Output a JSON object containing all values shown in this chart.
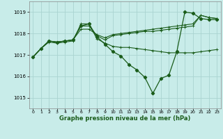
{
  "xlabel": "Graphe pression niveau de la mer (hPa)",
  "background_color": "#c8ece9",
  "grid_color": "#aad4d0",
  "line_color": "#1a5c1a",
  "x_ticks": [
    0,
    1,
    2,
    3,
    4,
    5,
    6,
    7,
    8,
    9,
    10,
    11,
    12,
    13,
    14,
    15,
    16,
    17,
    18,
    19,
    20,
    21,
    22,
    23
  ],
  "ylim": [
    1014.5,
    1019.5
  ],
  "yticks": [
    1015,
    1016,
    1017,
    1018,
    1019
  ],
  "series": [
    [
      1016.9,
      1017.3,
      1017.6,
      1017.55,
      1017.6,
      1017.65,
      1018.45,
      1018.45,
      1017.75,
      1017.55,
      1017.4,
      1017.35,
      1017.35,
      1017.3,
      1017.25,
      1017.2,
      1017.15,
      1017.1,
      1017.1,
      1017.1,
      1017.1,
      1017.15,
      1017.2,
      1017.25
    ],
    [
      1016.9,
      1017.3,
      1017.65,
      1017.6,
      1017.65,
      1017.7,
      1018.2,
      1018.2,
      1017.95,
      1017.8,
      1017.95,
      1018.0,
      1018.05,
      1018.1,
      1018.15,
      1018.2,
      1018.25,
      1018.3,
      1018.35,
      1018.4,
      1018.45,
      1018.85,
      1018.75,
      1018.7
    ],
    [
      1016.9,
      1017.3,
      1017.65,
      1017.6,
      1017.65,
      1017.7,
      1018.35,
      1018.35,
      1017.9,
      1017.7,
      1017.9,
      1017.95,
      1018.0,
      1018.05,
      1018.1,
      1018.1,
      1018.15,
      1018.2,
      1018.25,
      1018.3,
      1018.35,
      1018.85,
      1018.75,
      1018.7
    ],
    [
      1016.9,
      1017.3,
      1017.65,
      1017.6,
      1017.65,
      1017.7,
      1018.35,
      1018.45,
      1017.85,
      1017.5,
      1017.15,
      1016.95,
      1016.55,
      1016.3,
      1015.95,
      1015.2,
      1015.9,
      1016.05,
      1017.15,
      1019.0,
      1018.95,
      1018.7,
      1018.65,
      1018.65
    ]
  ]
}
